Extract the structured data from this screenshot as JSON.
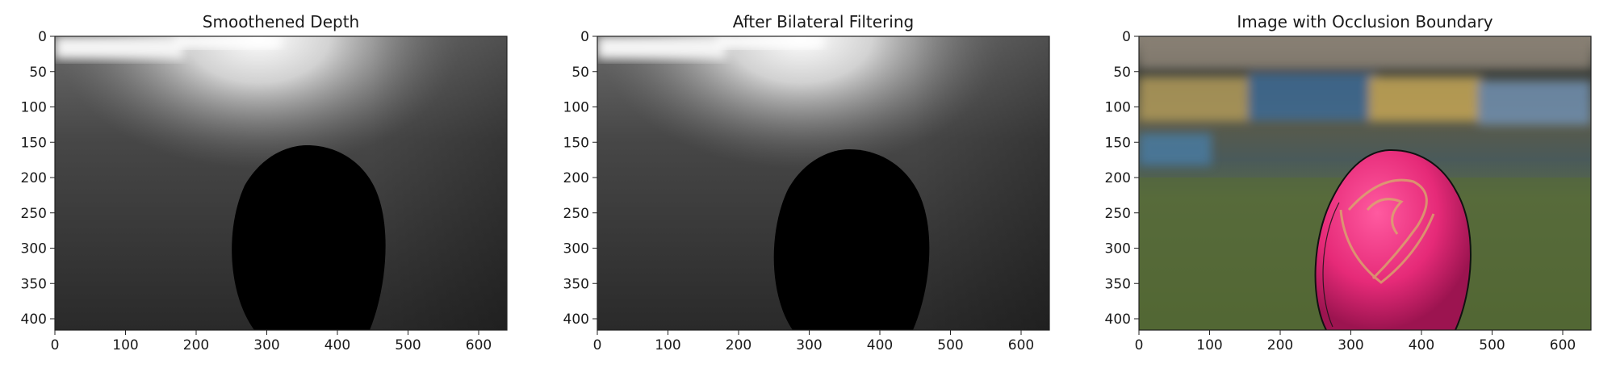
{
  "figure": {
    "panels": [
      {
        "title": "Smoothened Depth",
        "kind": "depth",
        "x_ticks": [
          "0",
          "100",
          "200",
          "300",
          "400",
          "500",
          "600"
        ],
        "y_ticks": [
          "0",
          "50",
          "100",
          "150",
          "200",
          "250",
          "300",
          "350",
          "400"
        ]
      },
      {
        "title": "After Bilateral Filtering",
        "kind": "depth-filtered",
        "x_ticks": [
          "0",
          "100",
          "200",
          "300",
          "400",
          "500",
          "600"
        ],
        "y_ticks": [
          "0",
          "50",
          "100",
          "150",
          "200",
          "250",
          "300",
          "350",
          "400"
        ]
      },
      {
        "title": "Image with Occlusion Boundary",
        "kind": "photo",
        "x_ticks": [
          "0",
          "100",
          "200",
          "300",
          "400",
          "500",
          "600"
        ],
        "y_ticks": [
          "0",
          "50",
          "100",
          "150",
          "200",
          "250",
          "300",
          "350",
          "400"
        ]
      }
    ],
    "image_extent": {
      "x": [
        0,
        640
      ],
      "y": [
        0,
        416
      ]
    },
    "colors": {
      "depth_background": "#3a3a3a",
      "depth_bright": "#f2f2f2",
      "object": "#000000",
      "ball": "#e8307a",
      "grass": "#5a6b3a",
      "stand_blue": "#4a6f9a",
      "stand_yellow": "#c8a65a",
      "boundary": "#111111"
    }
  }
}
